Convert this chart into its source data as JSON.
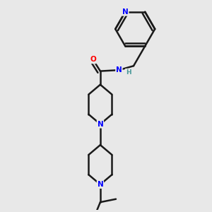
{
  "background_color": "#e8e8e8",
  "atom_colors": {
    "N": "#0000ff",
    "O": "#ff0000",
    "C": "#1a1a1a",
    "H": "#4a9a9a"
  },
  "bond_color": "#1a1a1a",
  "bond_width": 1.8,
  "fig_width": 3.0,
  "fig_height": 3.0,
  "dpi": 100,
  "xlim": [
    0.0,
    1.0
  ],
  "ylim": [
    0.0,
    1.0
  ]
}
